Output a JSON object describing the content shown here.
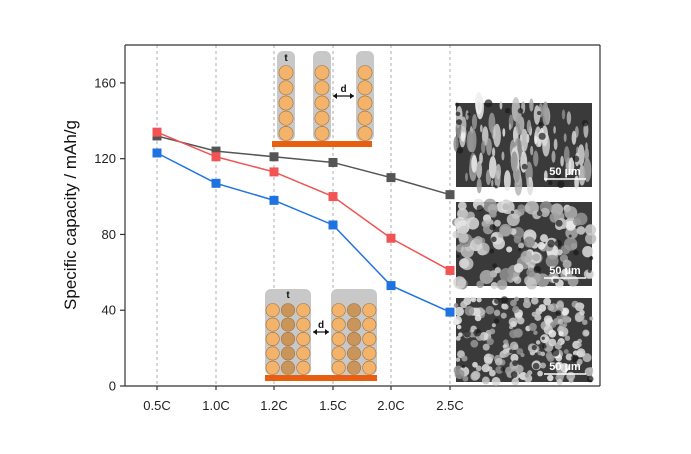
{
  "chart_data": {
    "type": "line",
    "title": "",
    "xlabel": "",
    "ylabel": "Specific capacity / mAh/g",
    "categories": [
      "0.5C",
      "1.0C",
      "1.2C",
      "1.5C",
      "2.0C",
      "2.5C"
    ],
    "ylim": [
      0,
      180
    ],
    "yticks": [
      0,
      40,
      80,
      120,
      160
    ],
    "grid": "vertical dashed lines at each category",
    "legend": "none",
    "series": [
      {
        "color": "#555555",
        "marker": "square",
        "values": [
          132,
          124,
          121,
          118,
          110,
          101
        ]
      },
      {
        "color": "#f05454",
        "marker": "square",
        "values": [
          134,
          121,
          113,
          100,
          78,
          61
        ]
      },
      {
        "color": "#1f73e0",
        "marker": "square",
        "values": [
          123,
          107,
          98,
          85,
          53,
          39
        ]
      }
    ]
  },
  "insets": {
    "sem_scale_labels": [
      "50 µm",
      "50 µm",
      "50 µm"
    ],
    "top_schematic": {
      "thickness_label": "t",
      "spacing_label": "d"
    },
    "bottom_schematic": {
      "thickness_label": "t",
      "spacing_label": "d"
    }
  },
  "colors": {
    "substrate": "#e8600f",
    "particle_light": "#f4b36b",
    "particle_dark": "#c9955a",
    "pillar_bg": "#c8c8c8"
  }
}
